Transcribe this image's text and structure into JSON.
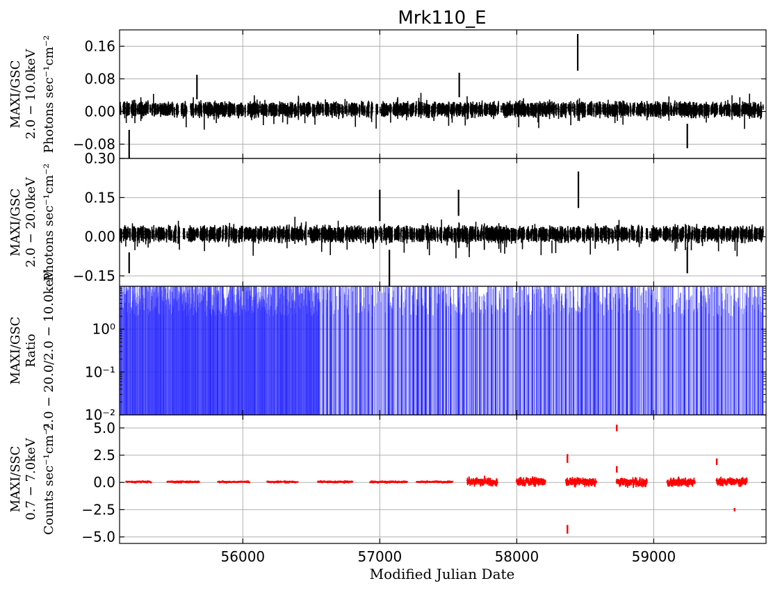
{
  "figure": {
    "title": "Mrk110_E",
    "xlabel": "Modified Julian Date"
  },
  "chart_data": [
    {
      "type": "line",
      "panel": "maxi-gsc-2-10kev",
      "title": "Mrk110_E",
      "ylabel_lines": [
        "MAXI/GSC",
        "2.0 − 10.0keV",
        "Photons sec⁻¹cm⁻²"
      ],
      "xlim": [
        55100,
        59820
      ],
      "ylim": [
        -0.115,
        0.2
      ],
      "yticks": [
        -0.08,
        0.0,
        0.08,
        0.16
      ],
      "ytick_labels": [
        "−0.08",
        "0.00",
        "0.08",
        "0.16"
      ],
      "xticks": [
        56000,
        57000,
        58000,
        59000
      ],
      "xtick_labels": [],
      "grid": true,
      "color": "#000000",
      "series_style": "1-day binned points with vertical error bars",
      "cadence_days": 1,
      "x_start": 55100,
      "x_end": 59800,
      "typical_value": 0.005,
      "typical_errorbar": 0.012,
      "notable_points": [
        {
          "x": 55170,
          "y": -0.08,
          "err": 0.035
        },
        {
          "x": 55665,
          "y": 0.06,
          "err": 0.03
        },
        {
          "x": 57580,
          "y": 0.065,
          "err": 0.03
        },
        {
          "x": 58445,
          "y": 0.145,
          "err": 0.045
        },
        {
          "x": 59245,
          "y": -0.06,
          "err": 0.03
        }
      ]
    },
    {
      "type": "line",
      "panel": "maxi-gsc-2-20kev",
      "ylabel_lines": [
        "MAXI/GSC",
        "2.0 − 20.0keV",
        "Photons sec⁻¹cm⁻²"
      ],
      "xlim": [
        55100,
        59820
      ],
      "ylim": [
        -0.19,
        0.3
      ],
      "yticks": [
        -0.15,
        0.0,
        0.15,
        0.3
      ],
      "ytick_labels": [
        "−0.15",
        "0.00",
        "0.15",
        "0.30"
      ],
      "xticks": [
        56000,
        57000,
        58000,
        59000
      ],
      "xtick_labels": [],
      "grid": true,
      "color": "#000000",
      "series_style": "1-day binned points with vertical error bars",
      "cadence_days": 1,
      "x_start": 55100,
      "x_end": 59800,
      "typical_value": 0.01,
      "typical_errorbar": 0.02,
      "notable_points": [
        {
          "x": 55170,
          "y": -0.1,
          "err": 0.04
        },
        {
          "x": 57000,
          "y": 0.12,
          "err": 0.06
        },
        {
          "x": 57070,
          "y": -0.12,
          "err": 0.07
        },
        {
          "x": 57575,
          "y": 0.13,
          "err": 0.05
        },
        {
          "x": 58450,
          "y": 0.18,
          "err": 0.07
        },
        {
          "x": 59245,
          "y": -0.09,
          "err": 0.05
        }
      ]
    },
    {
      "type": "line",
      "panel": "maxi-gsc-ratio",
      "ylabel_lines": [
        "MAXI/GSC",
        "Ratio",
        "2.0 − 20.0/2.0 − 10.0keV"
      ],
      "xlim": [
        55100,
        59820
      ],
      "ylim": [
        0.01,
        10
      ],
      "yscale": "log",
      "yticks": [
        0.01,
        0.1,
        1
      ],
      "ytick_labels": [
        "10⁻²",
        "10⁻¹",
        "10⁰"
      ],
      "xticks": [
        56000,
        57000,
        58000,
        59000
      ],
      "xtick_labels": [],
      "grid": true,
      "color": "#1f1fff",
      "series_style": "ratio bins with vertical error bars spanning from below 10^-2 to above the panel top",
      "x_start": 55100,
      "x_end": 59800,
      "dense_segment_end": 56560,
      "sparse_gap_days": 30
    },
    {
      "type": "scatter",
      "panel": "maxi-ssc",
      "ylabel_lines": [
        "MAXI/SSC",
        "0.7 − 7.0keV",
        "Counts sec⁻¹cm⁻²"
      ],
      "xlim": [
        55100,
        59820
      ],
      "ylim": [
        -5.6,
        6.2
      ],
      "yticks": [
        -5.0,
        -2.5,
        0.0,
        2.5,
        5.0
      ],
      "ytick_labels": [
        "−5.0",
        "−2.5",
        "0.0",
        "2.5",
        "5.0"
      ],
      "xticks": [
        56000,
        57000,
        58000,
        59000
      ],
      "xtick_labels": [
        "56000",
        "57000",
        "58000",
        "59000"
      ],
      "grid": true,
      "color": "#ff0000",
      "observing_windows": [
        [
          55150,
          55330
        ],
        [
          55450,
          55680
        ],
        [
          55820,
          56050
        ],
        [
          56180,
          56400
        ],
        [
          56550,
          56800
        ],
        [
          56930,
          57200
        ],
        [
          57270,
          57530
        ],
        [
          57640,
          57860
        ],
        [
          58000,
          58210
        ],
        [
          58360,
          58580
        ],
        [
          58730,
          58950
        ],
        [
          59100,
          59300
        ],
        [
          59460,
          59680
        ]
      ],
      "notable_points": [
        {
          "x": 58370,
          "y": 2.2,
          "err": 0.4
        },
        {
          "x": 58370,
          "y": -4.3,
          "err": 0.4
        },
        {
          "x": 58730,
          "y": 5.0,
          "err": 0.3
        },
        {
          "x": 58730,
          "y": 1.2,
          "err": 0.3
        },
        {
          "x": 59460,
          "y": 1.9,
          "err": 0.3
        },
        {
          "x": 59590,
          "y": -2.5,
          "err": 0.15
        }
      ]
    }
  ]
}
